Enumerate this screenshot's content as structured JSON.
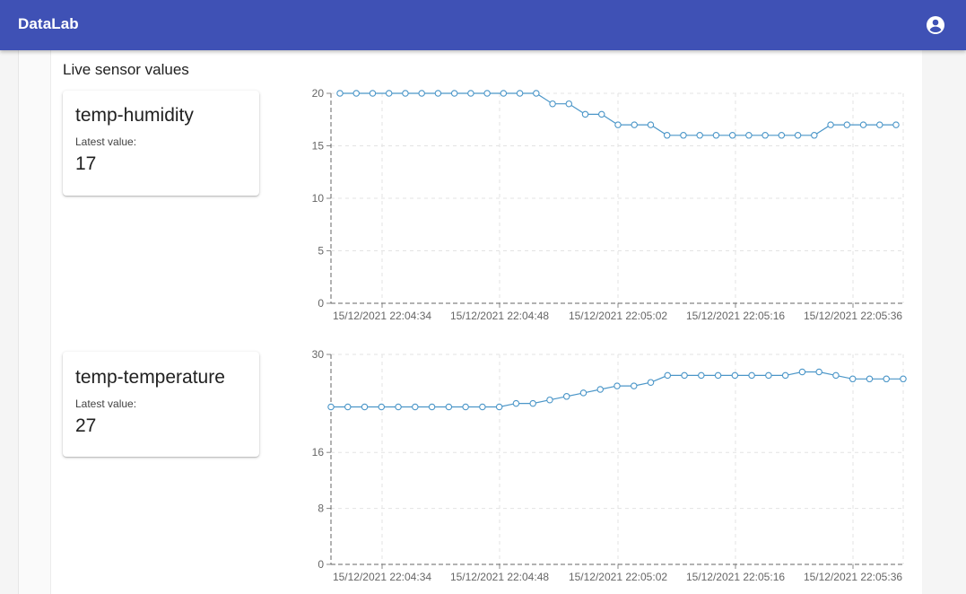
{
  "app": {
    "title": "DataLab",
    "account_icon": "account-circle-icon"
  },
  "section_title": "Live sensor values",
  "colors": {
    "appbar": "#3f51b5",
    "line": "#4b96c8"
  },
  "sensors": [
    {
      "name": "temp-humidity",
      "latest_label": "Latest value:",
      "latest_value": "17"
    },
    {
      "name": "temp-temperature",
      "latest_label": "Latest value:",
      "latest_value": "27"
    }
  ],
  "chart_data": [
    {
      "type": "line",
      "title": "",
      "xlabel": "",
      "ylabel": "",
      "x_tick_labels": [
        "15/12/2021 22:04:34",
        "15/12/2021 22:04:48",
        "15/12/2021 22:05:02",
        "15/12/2021 22:05:16",
        "15/12/2021 22:05:36"
      ],
      "y_ticks": [
        0,
        5,
        10,
        15,
        20
      ],
      "ylim": [
        0,
        20
      ],
      "grid": true,
      "values": [
        20,
        20,
        20,
        20,
        20,
        20,
        20,
        20,
        20,
        20,
        20,
        20,
        20,
        19,
        19,
        18,
        18,
        17,
        17,
        17,
        16,
        16,
        16,
        16,
        16,
        16,
        16,
        16,
        16,
        16,
        17,
        17,
        17,
        17,
        17
      ]
    },
    {
      "type": "line",
      "title": "",
      "xlabel": "",
      "ylabel": "",
      "x_tick_labels": [
        "15/12/2021 22:04:34",
        "15/12/2021 22:04:48",
        "15/12/2021 22:05:02",
        "15/12/2021 22:05:16",
        "15/12/2021 22:05:36"
      ],
      "y_ticks": [
        0,
        8,
        16,
        30
      ],
      "ylim": [
        0,
        30
      ],
      "grid": true,
      "values": [
        22.5,
        22.5,
        22.5,
        22.5,
        22.5,
        22.5,
        22.5,
        22.5,
        22.5,
        22.5,
        22.5,
        23,
        23,
        23.5,
        24,
        24.5,
        25,
        25.5,
        25.5,
        26,
        27,
        27,
        27,
        27,
        27,
        27,
        27,
        27,
        27.5,
        27.5,
        27,
        26.5,
        26.5,
        26.5,
        26.5
      ]
    }
  ]
}
